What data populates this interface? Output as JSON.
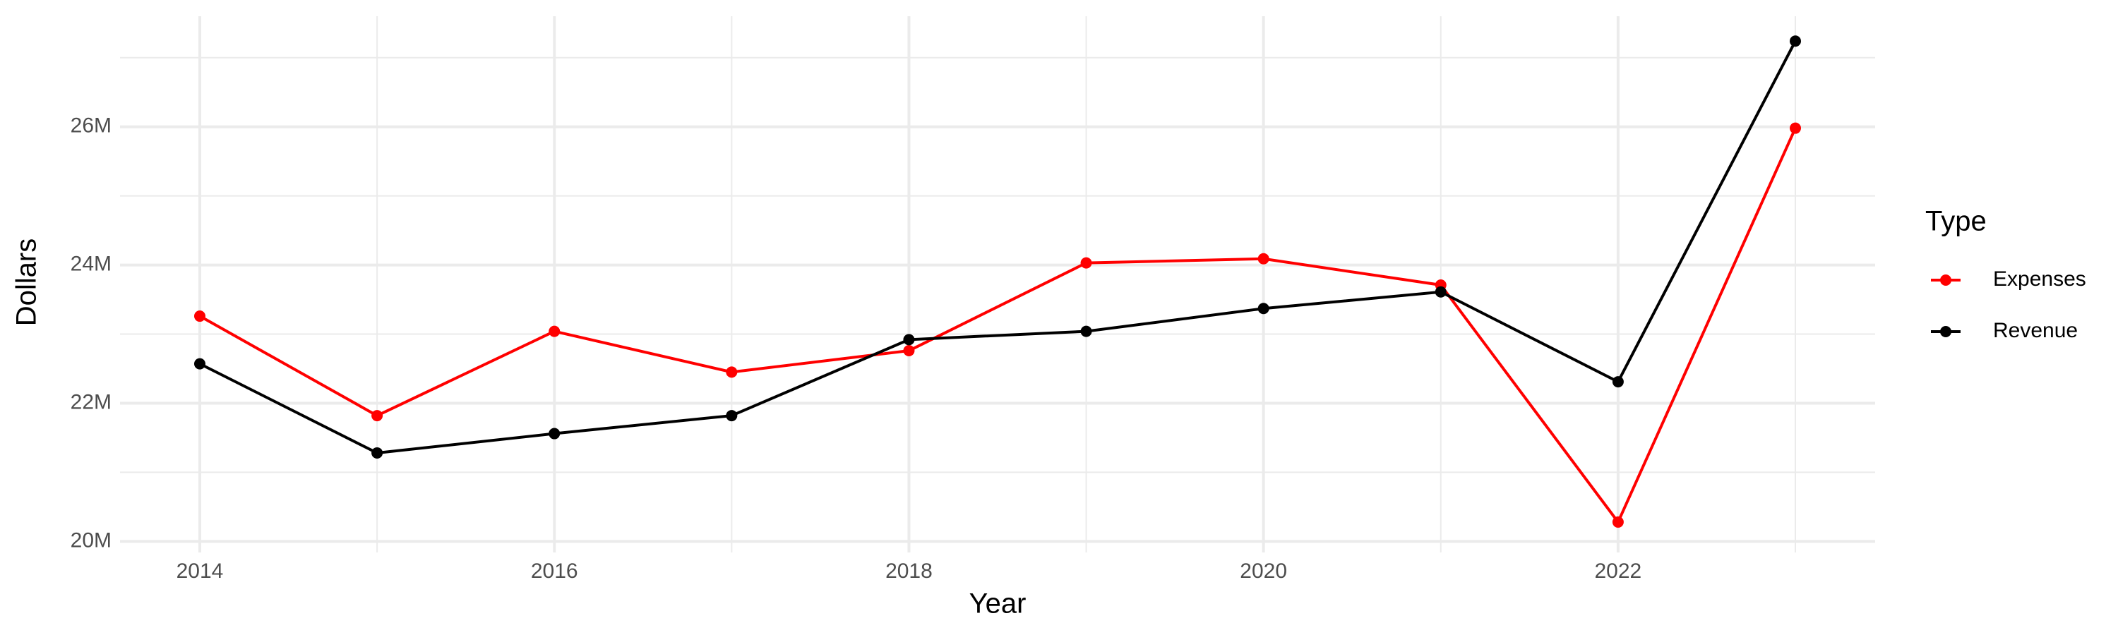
{
  "chart_data": {
    "type": "line",
    "x_label": "Year",
    "y_label": "Dollars",
    "legend_title": "Type",
    "legend_position": "right",
    "grid": true,
    "x": [
      2014,
      2015,
      2016,
      2017,
      2018,
      2019,
      2020,
      2021,
      2022,
      2023
    ],
    "series": [
      {
        "name": "Expenses",
        "color": "#ff0000",
        "values": [
          23260000,
          21820000,
          23040000,
          22450000,
          22760000,
          24030000,
          24090000,
          23710000,
          20280000,
          25980000
        ]
      },
      {
        "name": "Revenue",
        "color": "#000000",
        "values": [
          22570000,
          21280000,
          21560000,
          21820000,
          22920000,
          23040000,
          23370000,
          23610000,
          22310000,
          27240000
        ]
      }
    ],
    "xlim": [
      2013.55,
      2023.45
    ],
    "xticks": [
      2014,
      2016,
      2018,
      2020,
      2022
    ],
    "ylim": [
      19840000,
      27600000
    ],
    "yticks": [
      {
        "value": 20000000,
        "label": "20M"
      },
      {
        "value": 22000000,
        "label": "22M"
      },
      {
        "value": 24000000,
        "label": "24M"
      },
      {
        "value": 26000000,
        "label": "26M"
      }
    ]
  }
}
